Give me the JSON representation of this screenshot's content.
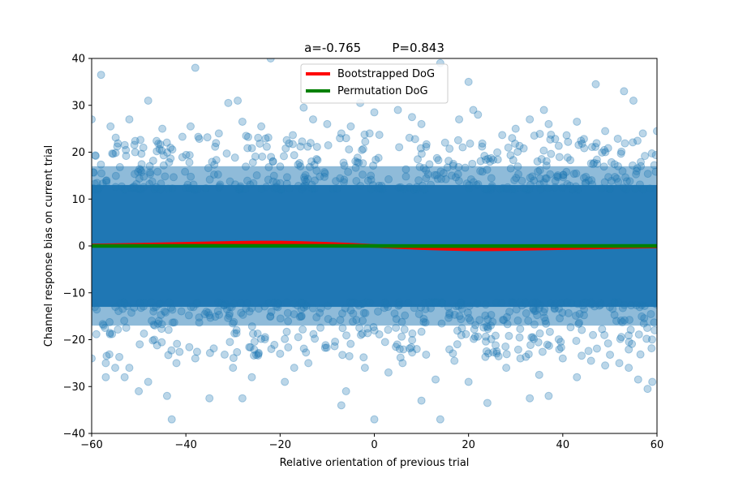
{
  "chart_data": {
    "type": "scatter",
    "title": "a=-0.765        P=0.843",
    "xlabel": "Relative orientation of previous trial",
    "ylabel": "Channel response bias on current trial",
    "xlim": [
      -60,
      60
    ],
    "ylim": [
      -40,
      40
    ],
    "xticks": [
      -60,
      -40,
      -20,
      0,
      20,
      40,
      60
    ],
    "yticks": [
      -40,
      -30,
      -20,
      -10,
      0,
      10,
      20,
      30,
      40
    ],
    "xtick_labels": [
      "−60",
      "−40",
      "−20",
      "0",
      "20",
      "40",
      "60"
    ],
    "ytick_labels": [
      "−40",
      "−30",
      "−20",
      "−10",
      "0",
      "10",
      "20",
      "30",
      "40"
    ],
    "grid": false,
    "legend_position": "top-center",
    "scatter": {
      "color": "#1f77b4",
      "alpha": 0.3,
      "outliers": [
        [
          -58,
          36.5
        ],
        [
          -38,
          38
        ],
        [
          -22,
          40
        ],
        [
          14,
          39
        ],
        [
          20,
          35
        ],
        [
          47,
          34.5
        ],
        [
          53,
          33
        ],
        [
          -29,
          31
        ],
        [
          -31,
          30.5
        ],
        [
          -48,
          31
        ],
        [
          -3,
          30.5
        ],
        [
          0,
          28.5
        ],
        [
          5,
          29
        ],
        [
          -60,
          27
        ],
        [
          -52,
          27
        ],
        [
          -28,
          26.5
        ],
        [
          -15,
          29.5
        ],
        [
          -13,
          27
        ],
        [
          -5,
          25.5
        ],
        [
          8,
          27.5
        ],
        [
          21,
          29
        ],
        [
          22,
          28
        ],
        [
          36,
          29
        ],
        [
          37,
          26
        ],
        [
          43,
          26.5
        ],
        [
          55,
          31
        ],
        [
          30,
          25
        ],
        [
          -39,
          25.5
        ],
        [
          -33,
          24
        ],
        [
          -45,
          25
        ],
        [
          -56,
          25.5
        ],
        [
          -10,
          26
        ],
        [
          10,
          26
        ],
        [
          18,
          27
        ],
        [
          33,
          27
        ],
        [
          49,
          24.5
        ],
        [
          57,
          24
        ],
        [
          60,
          24.5
        ],
        [
          -24,
          25.5
        ],
        [
          -7,
          24
        ],
        [
          -1,
          24
        ],
        [
          -57,
          -28
        ],
        [
          -53,
          -28
        ],
        [
          -50,
          -31
        ],
        [
          -48,
          -29
        ],
        [
          -44,
          -32
        ],
        [
          -43,
          -37
        ],
        [
          -35,
          -32.5
        ],
        [
          -28,
          -32.5
        ],
        [
          -26,
          -28
        ],
        [
          -19,
          -29
        ],
        [
          -6,
          -31
        ],
        [
          -7,
          -34
        ],
        [
          0,
          -37
        ],
        [
          14,
          -37
        ],
        [
          10,
          -33
        ],
        [
          13,
          -28.5
        ],
        [
          20,
          -29
        ],
        [
          24,
          -33.5
        ],
        [
          33,
          -32.5
        ],
        [
          35,
          -27.5
        ],
        [
          37,
          -32
        ],
        [
          43,
          -28
        ],
        [
          49,
          -25.5
        ],
        [
          54,
          -26
        ],
        [
          56,
          -28.5
        ],
        [
          58,
          -30.5
        ],
        [
          59,
          -29
        ],
        [
          -60,
          -24
        ],
        [
          -55,
          -26
        ],
        [
          -42,
          -25
        ],
        [
          -38,
          -24
        ],
        [
          -30,
          -26
        ],
        [
          -14,
          -25
        ],
        [
          -2,
          -26
        ],
        [
          6,
          -25
        ],
        [
          17,
          -24.5
        ],
        [
          28,
          -26
        ],
        [
          31,
          -24
        ],
        [
          40,
          -24
        ],
        [
          46,
          -24.5
        ],
        [
          52,
          -25
        ],
        [
          3,
          -27
        ],
        [
          -17,
          -26
        ],
        [
          -52,
          -26
        ],
        [
          -57,
          -25
        ],
        [
          -20,
          -23
        ],
        [
          26,
          -22.5
        ],
        [
          9,
          -22
        ]
      ]
    },
    "series": [
      {
        "name": "Bootstrapped DoG",
        "color": "#ff0000",
        "x": [
          -60,
          -50,
          -40,
          -30,
          -25,
          -20,
          -15,
          -10,
          -5,
          0,
          5,
          10,
          15,
          20,
          25,
          30,
          40,
          50,
          60
        ],
        "y": [
          0.1,
          0.25,
          0.45,
          0.65,
          0.72,
          0.72,
          0.6,
          0.45,
          0.25,
          0.0,
          -0.25,
          -0.45,
          -0.6,
          -0.72,
          -0.72,
          -0.65,
          -0.45,
          -0.25,
          -0.1
        ]
      },
      {
        "name": "Permutation DoG",
        "color": "#008000",
        "x": [
          -60,
          -30,
          -20,
          0,
          20,
          30,
          60
        ],
        "y": [
          0.0,
          0.03,
          0.03,
          0.0,
          -0.03,
          -0.03,
          0.0
        ]
      }
    ]
  }
}
